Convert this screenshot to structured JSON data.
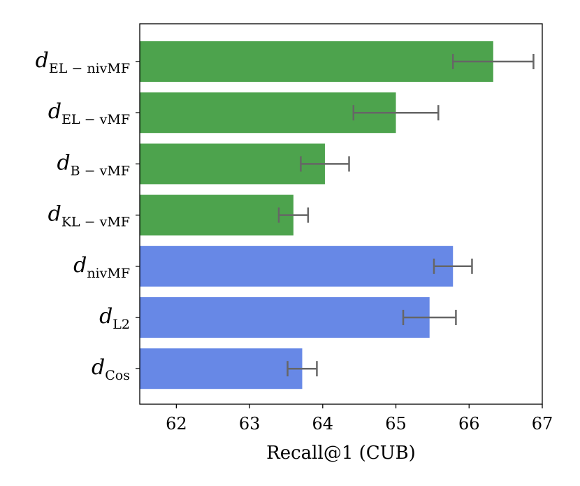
{
  "chart_data": {
    "type": "bar",
    "orientation": "horizontal",
    "xlabel": "Recall@1 (CUB)",
    "xlim": [
      61.5,
      67
    ],
    "xticks": [
      62,
      63,
      64,
      65,
      66,
      67
    ],
    "grid": false,
    "categories": [
      {
        "main": "d",
        "sub": "EL − nivMF"
      },
      {
        "main": "d",
        "sub": "EL − vMF"
      },
      {
        "main": "d",
        "sub": "B − vMF"
      },
      {
        "main": "d",
        "sub": "KL − vMF"
      },
      {
        "main": "d",
        "sub": "nivMF"
      },
      {
        "main": "d",
        "sub": "L2"
      },
      {
        "main": "d",
        "sub": "Cos"
      }
    ],
    "values": [
      66.33,
      65.0,
      64.03,
      63.6,
      65.78,
      65.46,
      63.72
    ],
    "errors": [
      0.55,
      0.58,
      0.33,
      0.2,
      0.26,
      0.36,
      0.2
    ],
    "colors": [
      "#4da34d",
      "#4da34d",
      "#4da34d",
      "#4da34d",
      "#6788e6",
      "#6788e6",
      "#6788e6"
    ],
    "error_color": "#666666"
  }
}
